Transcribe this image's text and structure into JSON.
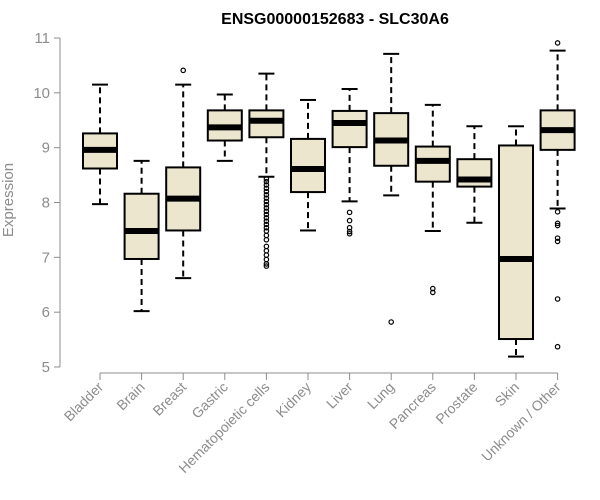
{
  "chart_data": {
    "type": "boxplot",
    "title": "ENSG00000152683 - SLC30A6",
    "xlabel": "",
    "ylabel": "Expression",
    "ylim": [
      5,
      11
    ],
    "yticks": [
      5,
      6,
      7,
      8,
      9,
      10,
      11
    ],
    "box_fill": "#ede6cf",
    "categories": [
      "Bladder",
      "Brain",
      "Breast",
      "Gastric",
      "Hematopoietic cells",
      "Kidney",
      "Liver",
      "Lung",
      "Pancreas",
      "Prostate",
      "Skin",
      "Unknown / Other"
    ],
    "boxes": [
      {
        "category": "Bladder",
        "whisker_low": 7.97,
        "q1": 8.62,
        "median": 8.96,
        "q3": 9.26,
        "whisker_high": 10.15,
        "outliers": []
      },
      {
        "category": "Brain",
        "whisker_low": 6.02,
        "q1": 6.97,
        "median": 7.48,
        "q3": 8.16,
        "whisker_high": 8.76,
        "outliers": []
      },
      {
        "category": "Breast",
        "whisker_low": 6.62,
        "q1": 7.49,
        "median": 8.07,
        "q3": 8.64,
        "whisker_high": 10.15,
        "outliers": [
          10.41
        ]
      },
      {
        "category": "Gastric",
        "whisker_low": 8.76,
        "q1": 9.13,
        "median": 9.37,
        "q3": 9.68,
        "whisker_high": 9.97,
        "outliers": []
      },
      {
        "category": "Hematopoietic cells",
        "whisker_low": 8.47,
        "q1": 9.19,
        "median": 9.49,
        "q3": 9.68,
        "whisker_high": 10.35,
        "outliers": [
          8.43,
          8.38,
          8.32,
          8.26,
          8.2,
          8.14,
          8.08,
          8.02,
          7.96,
          7.9,
          7.84,
          7.78,
          7.72,
          7.66,
          7.6,
          7.54,
          7.48,
          7.4,
          7.32,
          7.2,
          7.12,
          7.04,
          6.96,
          6.88,
          6.84
        ]
      },
      {
        "category": "Kidney",
        "whisker_low": 7.49,
        "q1": 8.19,
        "median": 8.61,
        "q3": 9.16,
        "whisker_high": 9.87,
        "outliers": []
      },
      {
        "category": "Liver",
        "whisker_low": 8.02,
        "q1": 9.01,
        "median": 9.45,
        "q3": 9.67,
        "whisker_high": 10.07,
        "outliers": [
          7.82,
          7.67,
          7.54,
          7.47,
          7.43
        ]
      },
      {
        "category": "Lung",
        "whisker_low": 8.13,
        "q1": 8.67,
        "median": 9.13,
        "q3": 9.63,
        "whisker_high": 10.71,
        "outliers": [
          5.82
        ]
      },
      {
        "category": "Pancreas",
        "whisker_low": 7.48,
        "q1": 8.38,
        "median": 8.76,
        "q3": 9.02,
        "whisker_high": 9.78,
        "outliers": [
          6.43,
          6.36
        ]
      },
      {
        "category": "Prostate",
        "whisker_low": 7.63,
        "q1": 8.29,
        "median": 8.42,
        "q3": 8.79,
        "whisker_high": 9.39,
        "outliers": []
      },
      {
        "category": "Skin",
        "whisker_low": 5.19,
        "q1": 5.51,
        "median": 6.97,
        "q3": 9.04,
        "whisker_high": 9.39,
        "outliers": []
      },
      {
        "category": "Unknown / Other",
        "whisker_low": 7.89,
        "q1": 8.96,
        "median": 9.32,
        "q3": 9.68,
        "whisker_high": 10.77,
        "outliers": [
          10.91,
          7.83,
          7.62,
          7.58,
          7.35,
          7.29,
          6.24,
          5.37
        ]
      }
    ]
  }
}
